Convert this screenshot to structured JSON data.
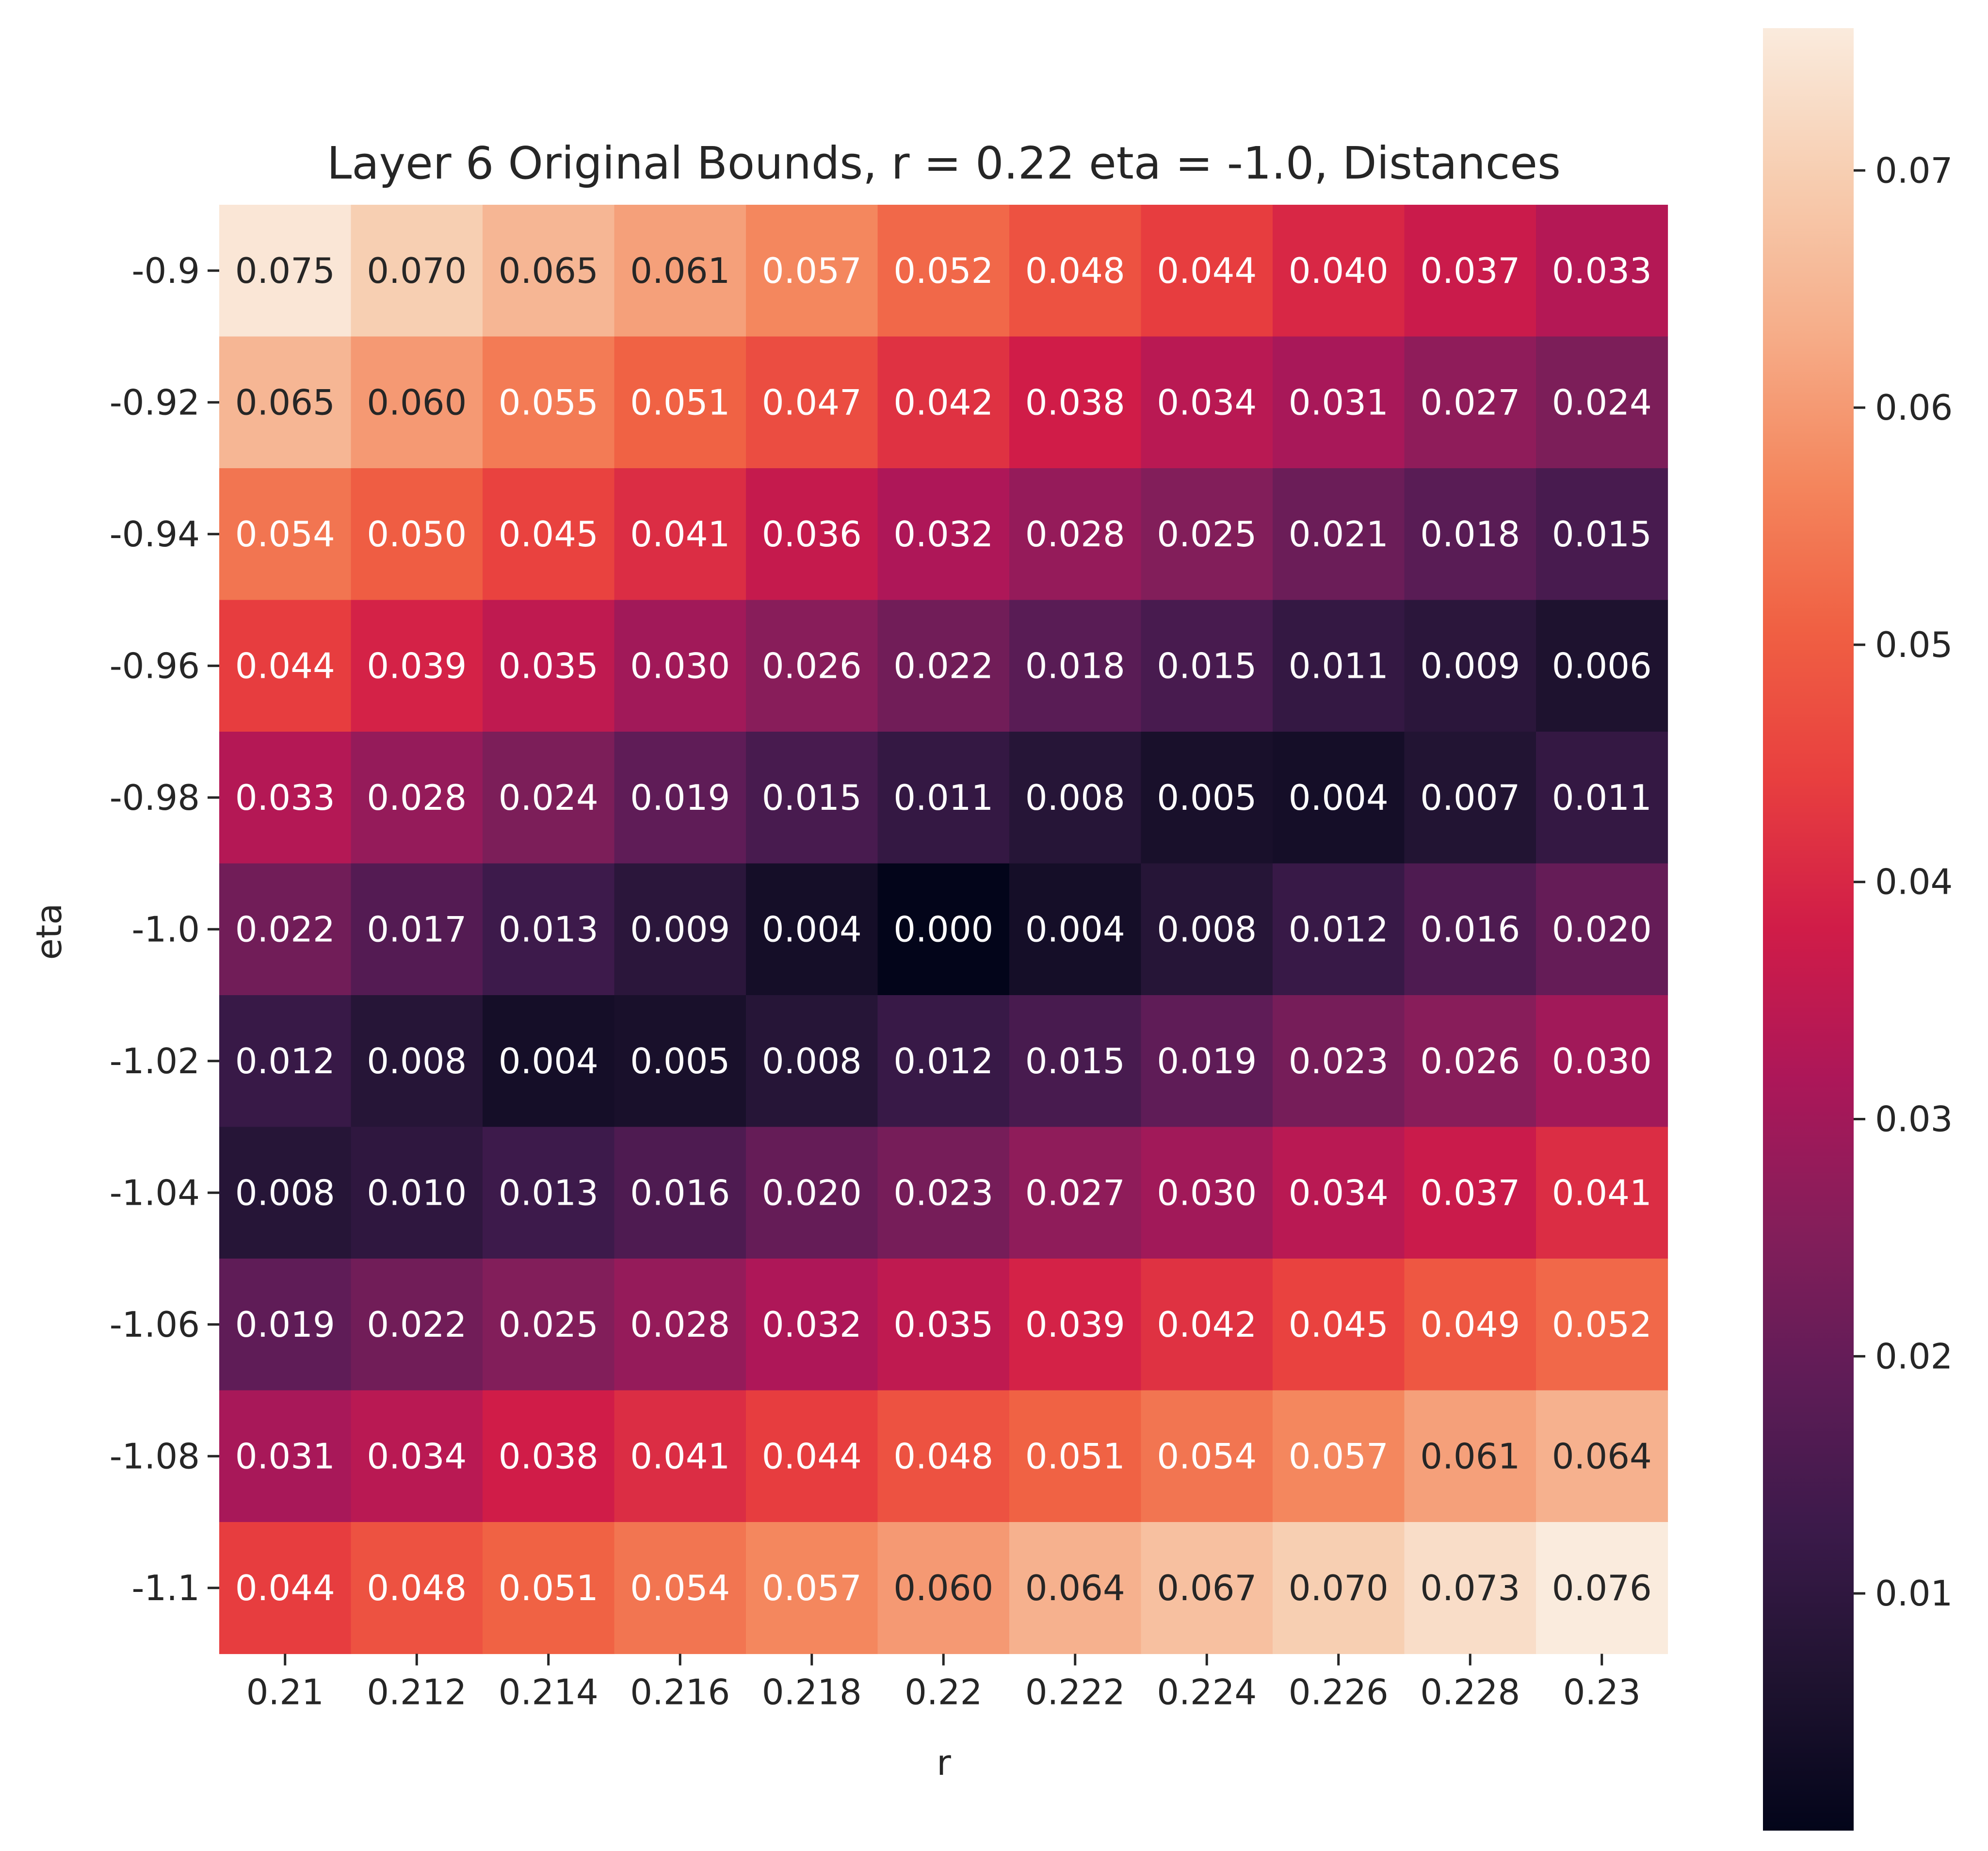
{
  "chart_data": {
    "type": "heatmap",
    "title": "Layer 6 Original Bounds, r = 0.22 eta = -1.0, Distances",
    "xlabel": "r",
    "ylabel": "eta",
    "x_categories": [
      "0.21",
      "0.212",
      "0.214",
      "0.216",
      "0.218",
      "0.22",
      "0.222",
      "0.224",
      "0.226",
      "0.228",
      "0.23"
    ],
    "y_categories": [
      "-0.9",
      "-0.92",
      "-0.94",
      "-0.96",
      "-0.98",
      "-1.0",
      "-1.02",
      "-1.04",
      "-1.06",
      "-1.08",
      "-1.1"
    ],
    "values": [
      [
        0.075,
        0.07,
        0.065,
        0.061,
        0.057,
        0.052,
        0.048,
        0.044,
        0.04,
        0.037,
        0.033
      ],
      [
        0.065,
        0.06,
        0.055,
        0.051,
        0.047,
        0.042,
        0.038,
        0.034,
        0.031,
        0.027,
        0.024
      ],
      [
        0.054,
        0.05,
        0.045,
        0.041,
        0.036,
        0.032,
        0.028,
        0.025,
        0.021,
        0.018,
        0.015
      ],
      [
        0.044,
        0.039,
        0.035,
        0.03,
        0.026,
        0.022,
        0.018,
        0.015,
        0.011,
        0.009,
        0.006
      ],
      [
        0.033,
        0.028,
        0.024,
        0.019,
        0.015,
        0.011,
        0.008,
        0.005,
        0.004,
        0.007,
        0.011
      ],
      [
        0.022,
        0.017,
        0.013,
        0.009,
        0.004,
        0.0,
        0.004,
        0.008,
        0.012,
        0.016,
        0.02
      ],
      [
        0.012,
        0.008,
        0.004,
        0.005,
        0.008,
        0.012,
        0.015,
        0.019,
        0.023,
        0.026,
        0.03
      ],
      [
        0.008,
        0.01,
        0.013,
        0.016,
        0.02,
        0.023,
        0.027,
        0.03,
        0.034,
        0.037,
        0.041
      ],
      [
        0.019,
        0.022,
        0.025,
        0.028,
        0.032,
        0.035,
        0.039,
        0.042,
        0.045,
        0.049,
        0.052
      ],
      [
        0.031,
        0.034,
        0.038,
        0.041,
        0.044,
        0.048,
        0.051,
        0.054,
        0.057,
        0.061,
        0.064
      ],
      [
        0.044,
        0.048,
        0.051,
        0.054,
        0.057,
        0.06,
        0.064,
        0.067,
        0.07,
        0.073,
        0.076
      ]
    ],
    "value_labels": [
      [
        "0.075",
        "0.070",
        "0.065",
        "0.061",
        "0.057",
        "0.052",
        "0.048",
        "0.044",
        "0.040",
        "0.037",
        "0.033"
      ],
      [
        "0.065",
        "0.060",
        "0.055",
        "0.051",
        "0.047",
        "0.042",
        "0.038",
        "0.034",
        "0.031",
        "0.027",
        "0.024"
      ],
      [
        "0.054",
        "0.050",
        "0.045",
        "0.041",
        "0.036",
        "0.032",
        "0.028",
        "0.025",
        "0.021",
        "0.018",
        "0.015"
      ],
      [
        "0.044",
        "0.039",
        "0.035",
        "0.030",
        "0.026",
        "0.022",
        "0.018",
        "0.015",
        "0.011",
        "0.009",
        "0.006"
      ],
      [
        "0.033",
        "0.028",
        "0.024",
        "0.019",
        "0.015",
        "0.011",
        "0.008",
        "0.005",
        "0.004",
        "0.007",
        "0.011"
      ],
      [
        "0.022",
        "0.017",
        "0.013",
        "0.009",
        "0.004",
        "0.000",
        "0.004",
        "0.008",
        "0.012",
        "0.016",
        "0.020"
      ],
      [
        "0.012",
        "0.008",
        "0.004",
        "0.005",
        "0.008",
        "0.012",
        "0.015",
        "0.019",
        "0.023",
        "0.026",
        "0.030"
      ],
      [
        "0.008",
        "0.010",
        "0.013",
        "0.016",
        "0.020",
        "0.023",
        "0.027",
        "0.030",
        "0.034",
        "0.037",
        "0.041"
      ],
      [
        "0.019",
        "0.022",
        "0.025",
        "0.028",
        "0.032",
        "0.035",
        "0.039",
        "0.042",
        "0.045",
        "0.049",
        "0.052"
      ],
      [
        "0.031",
        "0.034",
        "0.038",
        "0.041",
        "0.044",
        "0.048",
        "0.051",
        "0.054",
        "0.057",
        "0.061",
        "0.064"
      ],
      [
        "0.044",
        "0.048",
        "0.051",
        "0.054",
        "0.057",
        "0.060",
        "0.064",
        "0.067",
        "0.070",
        "0.073",
        "0.076"
      ]
    ],
    "colorbar": {
      "range": [
        0.0,
        0.076
      ],
      "ticks": [
        0.01,
        0.02,
        0.03,
        0.04,
        0.05,
        0.06,
        0.07
      ],
      "tick_labels": [
        "0.01",
        "0.02",
        "0.03",
        "0.04",
        "0.05",
        "0.06",
        "0.07"
      ],
      "colormap": "rocket",
      "colormap_stops": [
        "#03051a",
        "#1f1330",
        "#3b1a4a",
        "#5f1c57",
        "#841e5a",
        "#ac1759",
        "#d01c48",
        "#e83f3f",
        "#f06043",
        "#f4875e",
        "#f6ae8a",
        "#f7cdb0",
        "#faebdd"
      ]
    },
    "text_color_light": "#ffffff",
    "text_color_dark": "#262626",
    "grid": false
  }
}
